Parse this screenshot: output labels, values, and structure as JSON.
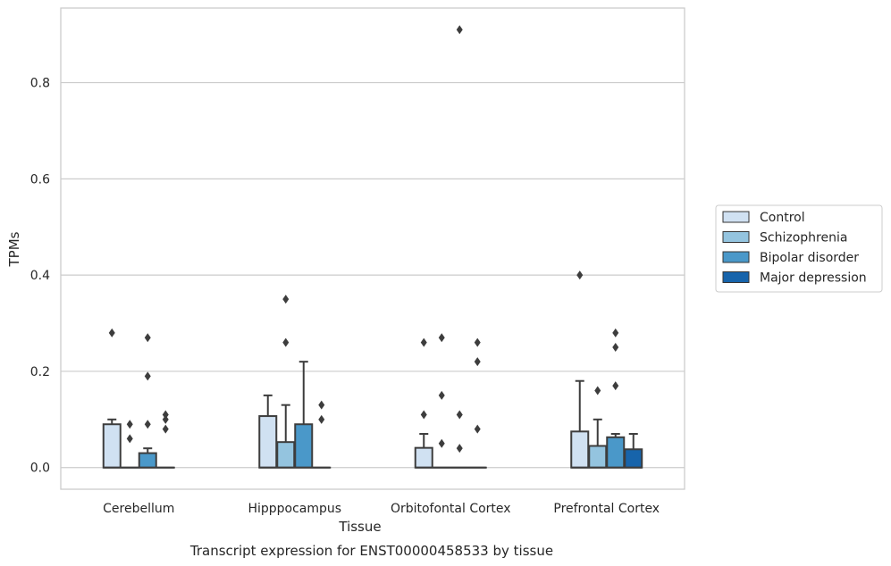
{
  "caption": "Transcript expression for ENST00000458533 by tissue",
  "chart_data": {
    "type": "boxplot",
    "title": "",
    "xlabel": "Tissue",
    "ylabel": "TPMs",
    "ylim": [
      -0.045,
      0.955
    ],
    "yticks": [
      0.0,
      0.2,
      0.4,
      0.6,
      0.8
    ],
    "ytick_labels": [
      "0.0",
      "0.2",
      "0.4",
      "0.6",
      "0.8"
    ],
    "grid": "horizontal",
    "legend_position": "right",
    "categories": [
      "Cerebellum",
      "Hipppocampus",
      "Orbitofontal Cortex",
      "Prefrontal Cortex"
    ],
    "series": [
      {
        "name": "Control",
        "color": "#d0e1f2",
        "boxes": [
          {
            "q1": 0.0,
            "median": 0.0,
            "q3": 0.09,
            "whisker_low": 0.0,
            "whisker_high": 0.1,
            "outliers": [
              0.28
            ]
          },
          {
            "q1": 0.0,
            "median": 0.0,
            "q3": 0.107,
            "whisker_low": 0.0,
            "whisker_high": 0.15,
            "outliers": []
          },
          {
            "q1": 0.0,
            "median": 0.0,
            "q3": 0.041,
            "whisker_low": 0.0,
            "whisker_high": 0.07,
            "outliers": [
              0.11,
              0.26
            ]
          },
          {
            "q1": 0.0,
            "median": 0.0,
            "q3": 0.075,
            "whisker_low": 0.0,
            "whisker_high": 0.18,
            "outliers": [
              0.4
            ]
          }
        ]
      },
      {
        "name": "Schizophrenia",
        "color": "#94c4df",
        "boxes": [
          {
            "q1": 0.0,
            "median": 0.0,
            "q3": 0.0,
            "whisker_low": 0.0,
            "whisker_high": 0.0,
            "outliers": [
              0.06,
              0.09
            ]
          },
          {
            "q1": 0.0,
            "median": 0.0,
            "q3": 0.053,
            "whisker_low": 0.0,
            "whisker_high": 0.13,
            "outliers": [
              0.26,
              0.35
            ]
          },
          {
            "q1": 0.0,
            "median": 0.0,
            "q3": 0.0,
            "whisker_low": 0.0,
            "whisker_high": 0.0,
            "outliers": [
              0.05,
              0.15,
              0.27
            ]
          },
          {
            "q1": 0.0,
            "median": 0.0,
            "q3": 0.045,
            "whisker_low": 0.0,
            "whisker_high": 0.1,
            "outliers": [
              0.16
            ]
          }
        ]
      },
      {
        "name": "Bipolar disorder",
        "color": "#4a98c9",
        "boxes": [
          {
            "q1": 0.0,
            "median": 0.0,
            "q3": 0.03,
            "whisker_low": 0.0,
            "whisker_high": 0.04,
            "outliers": [
              0.09,
              0.19,
              0.27
            ]
          },
          {
            "q1": 0.0,
            "median": 0.0,
            "q3": 0.09,
            "whisker_low": 0.0,
            "whisker_high": 0.22,
            "outliers": []
          },
          {
            "q1": 0.0,
            "median": 0.0,
            "q3": 0.0,
            "whisker_low": 0.0,
            "whisker_high": 0.0,
            "outliers": [
              0.04,
              0.11,
              0.91
            ]
          },
          {
            "q1": 0.0,
            "median": 0.0,
            "q3": 0.063,
            "whisker_low": 0.0,
            "whisker_high": 0.07,
            "outliers": [
              0.17,
              0.25,
              0.28
            ]
          }
        ]
      },
      {
        "name": "Major depression",
        "color": "#1764ab",
        "boxes": [
          {
            "q1": 0.0,
            "median": 0.0,
            "q3": 0.0,
            "whisker_low": 0.0,
            "whisker_high": 0.0,
            "outliers": [
              0.08,
              0.1,
              0.11
            ]
          },
          {
            "q1": 0.0,
            "median": 0.0,
            "q3": 0.0,
            "whisker_low": 0.0,
            "whisker_high": 0.0,
            "outliers": [
              0.1,
              0.13
            ]
          },
          {
            "q1": 0.0,
            "median": 0.0,
            "q3": 0.0,
            "whisker_low": 0.0,
            "whisker_high": 0.0,
            "outliers": [
              0.08,
              0.22,
              0.26
            ]
          },
          {
            "q1": 0.0,
            "median": 0.0,
            "q3": 0.038,
            "whisker_low": 0.0,
            "whisker_high": 0.07,
            "outliers": []
          }
        ]
      }
    ]
  }
}
